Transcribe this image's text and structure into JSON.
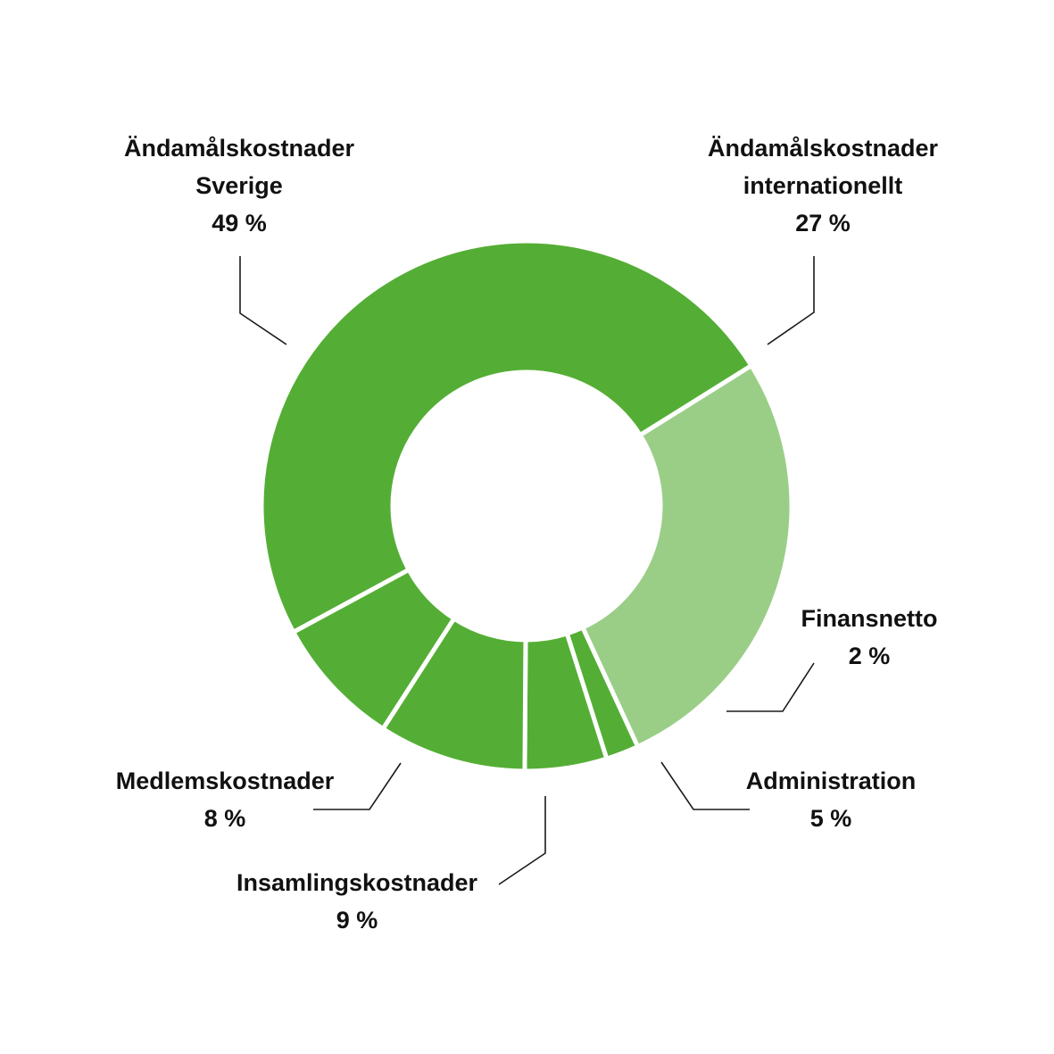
{
  "chart_data": {
    "type": "donut",
    "unit": "%",
    "slices": [
      {
        "name": "Ändamålskostnader internationellt",
        "label_lines": [
          "Ändamålskostnader",
          "internationellt"
        ],
        "value": 27,
        "value_label": "27 %",
        "color": "#9ace87"
      },
      {
        "name": "Finansnetto",
        "label_lines": [
          "Finansnetto"
        ],
        "value": 2,
        "value_label": "2 %",
        "color": "#54ae35"
      },
      {
        "name": "Administration",
        "label_lines": [
          "Administration"
        ],
        "value": 5,
        "value_label": "5 %",
        "color": "#54ae35"
      },
      {
        "name": "Insamlingskostnader",
        "label_lines": [
          "Insamlingskostnader"
        ],
        "value": 9,
        "value_label": "9 %",
        "color": "#54ae35"
      },
      {
        "name": "Medlemskostnader",
        "label_lines": [
          "Medlemskostnader"
        ],
        "value": 8,
        "value_label": "8 %",
        "color": "#54ae35"
      },
      {
        "name": "Ändamålskostnader Sverige",
        "label_lines": [
          "Ändamålskostnader",
          "Sverige"
        ],
        "value": 49,
        "value_label": "49 %",
        "color": "#54ae35"
      }
    ],
    "separator_color": "#ffffff",
    "label_color": "#111111"
  }
}
